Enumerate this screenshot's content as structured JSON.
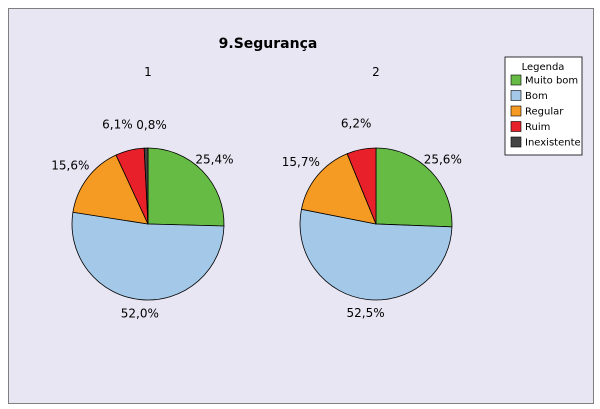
{
  "chart_data": {
    "type": "pie",
    "title": "9.Segurança",
    "legend": {
      "title": "Legenda",
      "placement": "right",
      "entries": [
        "Muito bom",
        "Bom",
        "Regular",
        "Ruim",
        "Inexistente"
      ]
    },
    "colors": [
      "#66bb44",
      "#a3c8e8",
      "#f59a22",
      "#e8202a",
      "#444444"
    ],
    "categories": [
      "Muito bom",
      "Bom",
      "Regular",
      "Ruim",
      "Inexistente"
    ],
    "series": [
      {
        "name": "1",
        "values": [
          25.4,
          52.0,
          15.6,
          6.1,
          0.8
        ],
        "labels": [
          "25,4%",
          "52,0%",
          "15,6%",
          "6,1%",
          "0,8%"
        ]
      },
      {
        "name": "2",
        "values": [
          25.6,
          52.5,
          15.7,
          6.2,
          0.0
        ],
        "labels": [
          "25,6%",
          "52,5%",
          "15,7%",
          "6,2%",
          ""
        ]
      }
    ]
  }
}
